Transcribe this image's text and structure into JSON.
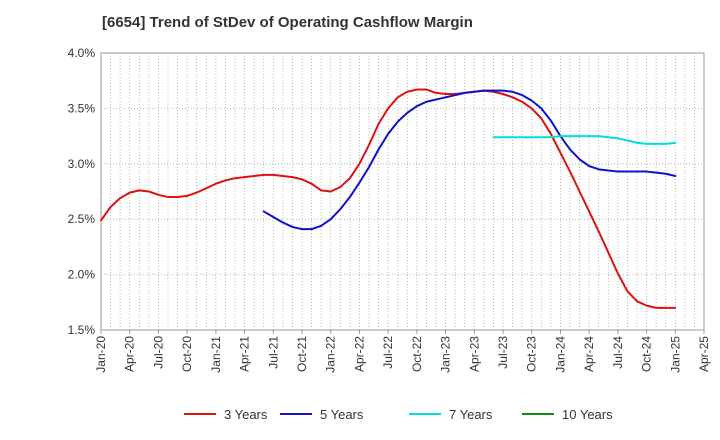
{
  "chart_data": {
    "type": "line",
    "title": "[6654]  Trend of StDev of Operating Cashflow Margin",
    "xlabel": "",
    "ylabel": "",
    "x_ticks": [
      "Jan-20",
      "Apr-20",
      "Jul-20",
      "Oct-20",
      "Jan-21",
      "Apr-21",
      "Jul-21",
      "Oct-21",
      "Jan-22",
      "Apr-22",
      "Jul-22",
      "Oct-22",
      "Jan-23",
      "Apr-23",
      "Jul-23",
      "Oct-23",
      "Jan-24",
      "Apr-24",
      "Jul-24",
      "Oct-24",
      "Jan-25",
      "Apr-25"
    ],
    "y_ticks": [
      "1.5%",
      "2.0%",
      "2.5%",
      "3.0%",
      "3.5%",
      "4.0%"
    ],
    "ylim": [
      1.5,
      4.0
    ],
    "grid": true,
    "legend_position": "bottom",
    "series": [
      {
        "name": "3 Years",
        "color": "#dd1111",
        "x": [
          "2020-01",
          "2020-02",
          "2020-03",
          "2020-04",
          "2020-05",
          "2020-06",
          "2020-07",
          "2020-08",
          "2020-09",
          "2020-10",
          "2020-11",
          "2020-12",
          "2021-01",
          "2021-02",
          "2021-03",
          "2021-04",
          "2021-05",
          "2021-06",
          "2021-07",
          "2021-08",
          "2021-09",
          "2021-10",
          "2021-11",
          "2021-12",
          "2022-01",
          "2022-02",
          "2022-03",
          "2022-04",
          "2022-05",
          "2022-06",
          "2022-07",
          "2022-08",
          "2022-09",
          "2022-10",
          "2022-11",
          "2022-12",
          "2023-01",
          "2023-02",
          "2023-03",
          "2023-04",
          "2023-05",
          "2023-06",
          "2023-07",
          "2023-08",
          "2023-09",
          "2023-10",
          "2023-11",
          "2023-12",
          "2024-01",
          "2024-02",
          "2024-03",
          "2024-04",
          "2024-05",
          "2024-06",
          "2024-07",
          "2024-08",
          "2024-09",
          "2024-10",
          "2024-11",
          "2024-12",
          "2025-01"
        ],
        "values": [
          2.49,
          2.61,
          2.69,
          2.74,
          2.76,
          2.75,
          2.72,
          2.7,
          2.7,
          2.71,
          2.74,
          2.78,
          2.82,
          2.85,
          2.87,
          2.88,
          2.89,
          2.9,
          2.9,
          2.89,
          2.88,
          2.86,
          2.82,
          2.76,
          2.75,
          2.79,
          2.87,
          3.0,
          3.17,
          3.36,
          3.5,
          3.6,
          3.65,
          3.67,
          3.67,
          3.64,
          3.63,
          3.63,
          3.64,
          3.65,
          3.66,
          3.65,
          3.63,
          3.6,
          3.56,
          3.5,
          3.41,
          3.27,
          3.1,
          2.93,
          2.75,
          2.57,
          2.39,
          2.2,
          2.01,
          1.85,
          1.76,
          1.72,
          1.7,
          1.7,
          1.7
        ]
      },
      {
        "name": "5 Years",
        "color": "#1111cc",
        "x": [
          "2021-06",
          "2021-07",
          "2021-08",
          "2021-09",
          "2021-10",
          "2021-11",
          "2021-12",
          "2022-01",
          "2022-02",
          "2022-03",
          "2022-04",
          "2022-05",
          "2022-06",
          "2022-07",
          "2022-08",
          "2022-09",
          "2022-10",
          "2022-11",
          "2022-12",
          "2023-01",
          "2023-02",
          "2023-03",
          "2023-04",
          "2023-05",
          "2023-06",
          "2023-07",
          "2023-08",
          "2023-09",
          "2023-10",
          "2023-11",
          "2023-12",
          "2024-01",
          "2024-02",
          "2024-03",
          "2024-04",
          "2024-05",
          "2024-06",
          "2024-07",
          "2024-08",
          "2024-09",
          "2024-10",
          "2024-11",
          "2024-12",
          "2025-01"
        ],
        "values": [
          2.57,
          2.52,
          2.47,
          2.43,
          2.41,
          2.41,
          2.44,
          2.5,
          2.59,
          2.7,
          2.83,
          2.97,
          3.13,
          3.27,
          3.38,
          3.46,
          3.52,
          3.56,
          3.58,
          3.6,
          3.62,
          3.64,
          3.65,
          3.66,
          3.66,
          3.66,
          3.65,
          3.62,
          3.57,
          3.5,
          3.39,
          3.25,
          3.13,
          3.04,
          2.98,
          2.95,
          2.94,
          2.93,
          2.93,
          2.93,
          2.93,
          2.92,
          2.91,
          2.89
        ]
      },
      {
        "name": "7 Years",
        "color": "#00dddd",
        "x": [
          "2023-06",
          "2023-07",
          "2023-08",
          "2023-09",
          "2023-10",
          "2023-11",
          "2023-12",
          "2024-01",
          "2024-02",
          "2024-03",
          "2024-04",
          "2024-05",
          "2024-06",
          "2024-07",
          "2024-08",
          "2024-09",
          "2024-10",
          "2024-11",
          "2024-12",
          "2025-01"
        ],
        "values": [
          3.24,
          3.24,
          3.24,
          3.24,
          3.24,
          3.24,
          3.24,
          3.25,
          3.25,
          3.25,
          3.25,
          3.25,
          3.24,
          3.23,
          3.21,
          3.19,
          3.18,
          3.18,
          3.18,
          3.19
        ]
      },
      {
        "name": "10 Years",
        "color": "#118811",
        "x": [],
        "values": []
      }
    ]
  }
}
